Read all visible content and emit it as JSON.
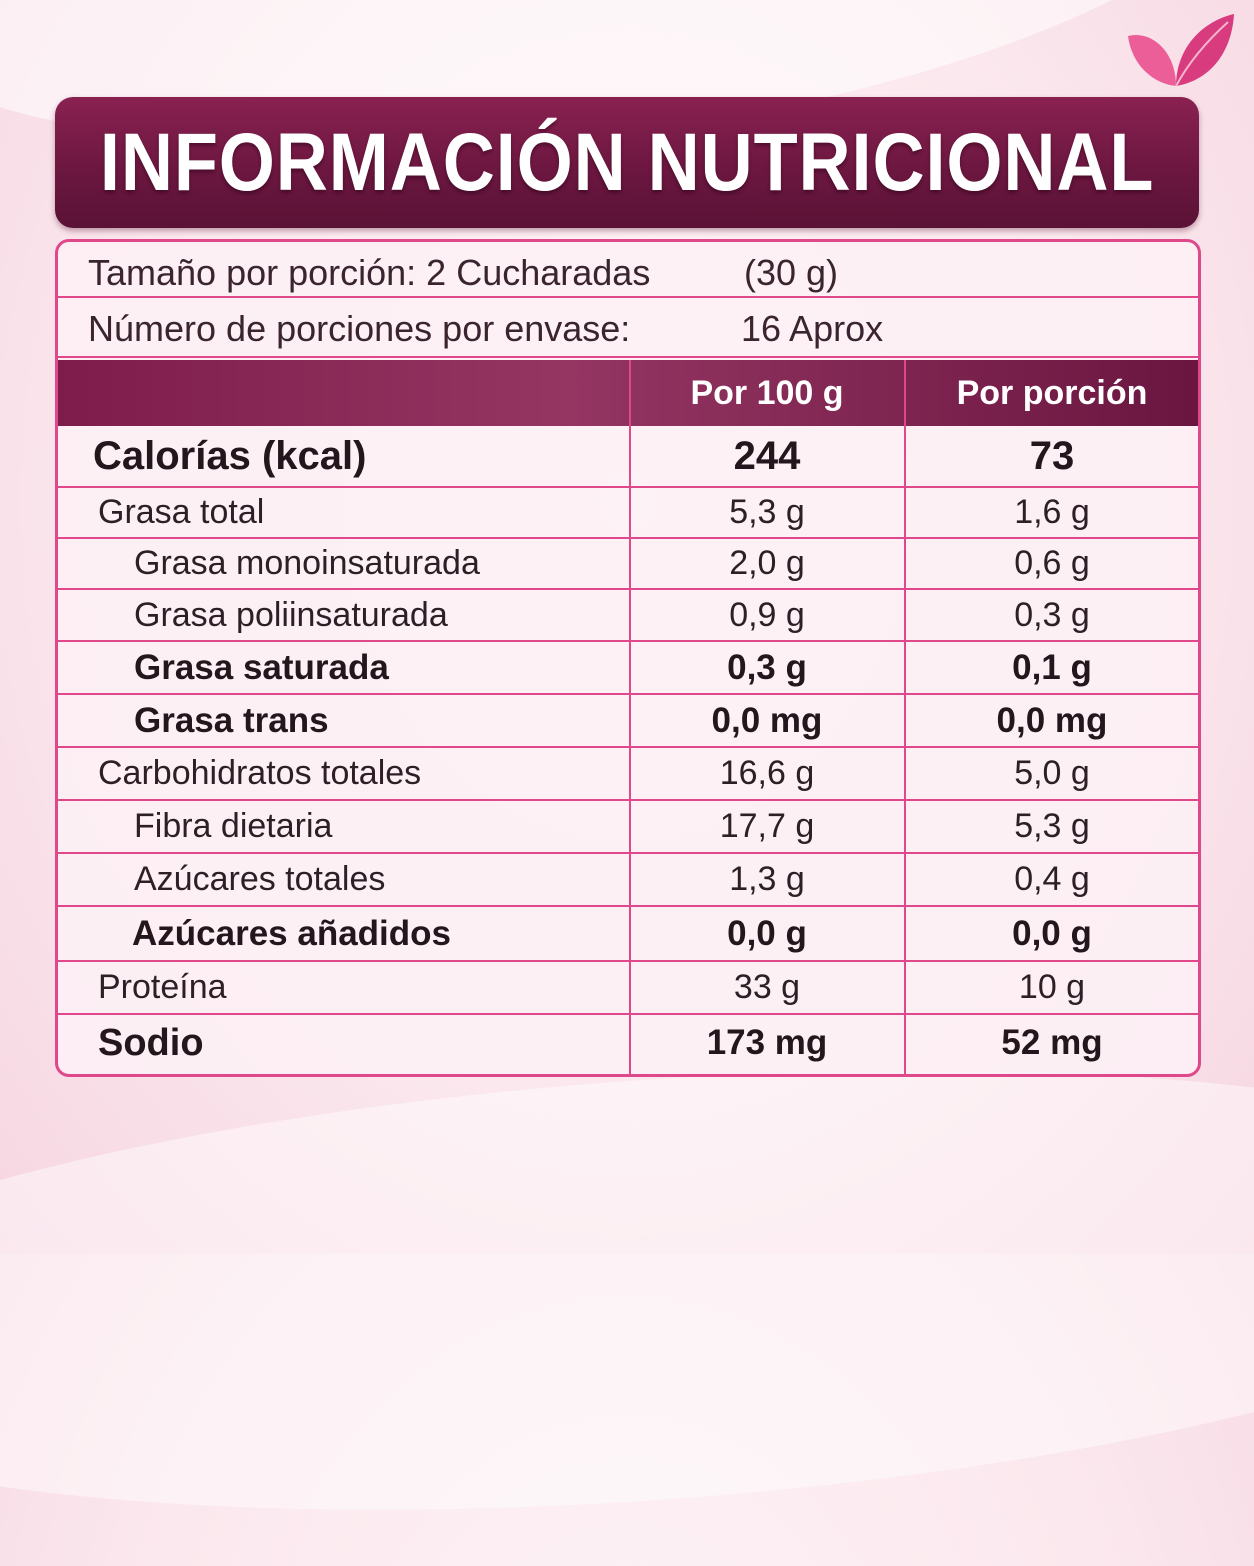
{
  "title": "INFORMACIÓN NUTRICIONAL",
  "serving": {
    "size_label": "Tamaño por porción: 2 Cucharadas",
    "size_value": "(30 g)",
    "count_label": "Número de porciones por envase:",
    "count_value": "16 Aprox"
  },
  "columns": [
    "Por 100 g",
    "Por porción"
  ],
  "rows": [
    {
      "label": "Calorías (kcal)",
      "per100": "244",
      "perServing": "73"
    },
    {
      "label": "Grasa total",
      "per100": "5,3 g",
      "perServing": "1,6 g"
    },
    {
      "label": "Grasa monoinsaturada",
      "per100": "2,0 g",
      "perServing": "0,6 g"
    },
    {
      "label": "Grasa poliinsaturada",
      "per100": "0,9 g",
      "perServing": "0,3 g"
    },
    {
      "label": "Grasa saturada",
      "per100": "0,3 g",
      "perServing": "0,1 g"
    },
    {
      "label": "Grasa trans",
      "per100": "0,0 mg",
      "perServing": "0,0 mg"
    },
    {
      "label": "Carbohidratos totales",
      "per100": "16,6 g",
      "perServing": "5,0 g"
    },
    {
      "label": "Fibra dietaria",
      "per100": "17,7 g",
      "perServing": "5,3 g"
    },
    {
      "label": "Azúcares totales",
      "per100": "1,3 g",
      "perServing": "0,4 g"
    },
    {
      "label": "Azúcares añadidos",
      "per100": "0,0 g",
      "perServing": "0,0 g"
    },
    {
      "label": "Proteína",
      "per100": "33 g",
      "perServing": "10 g"
    },
    {
      "label": "Sodio",
      "per100": "173 mg",
      "perServing": "52 mg"
    }
  ],
  "colors": {
    "banner": "#6c1740",
    "border": "#e0488c",
    "leaf": "#e0488c"
  },
  "icons": {
    "brand": "leaf-logo-icon"
  }
}
